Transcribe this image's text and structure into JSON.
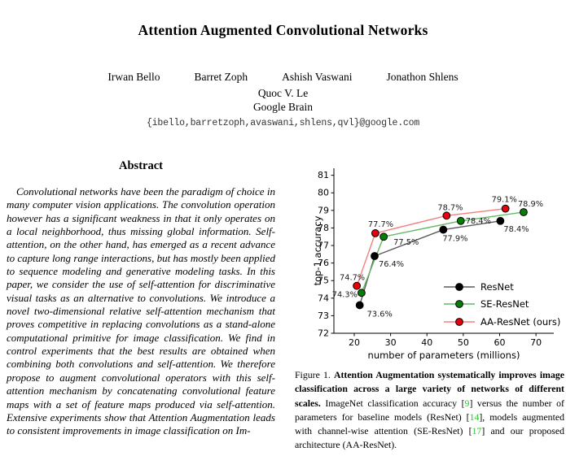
{
  "page": {
    "title": "Attention Augmented Convolutional Networks",
    "authors": [
      "Irwan Bello",
      "Barret Zoph",
      "Ashish Vaswani",
      "Jonathon Shlens"
    ],
    "authors_line2": "Quoc V. Le",
    "affiliation": "Google Brain",
    "email": "{ibello,barretzoph,avaswani,shlens,qvl}@google.com"
  },
  "abstract": {
    "heading": "Abstract",
    "text": "Convolutional networks have been the paradigm of choice in many computer vision applications. The convolution operation however has a significant weakness in that it only operates on a local neighborhood, thus missing global information. Self-attention, on the other hand, has emerged as a recent advance to capture long range interactions, but has mostly been applied to sequence modeling and generative modeling tasks. In this paper, we consider the use of self-attention for discriminative visual tasks as an alternative to convolutions. We introduce a novel two-dimensional relative self-attention mechanism that proves competitive in replacing convolutions as a stand-alone computational primitive for image classification. We find in control experiments that the best results are obtained when combining both convolutions and self-attention. We therefore propose to augment convolutional operators with this self-attention mechanism by concatenating convolutional feature maps with a set of feature maps produced via self-attention. Extensive experiments show that Attention Augmentation leads to consistent improvements in image classification on Im-"
  },
  "caption": {
    "segments": [
      {
        "text": "Figure 1. ",
        "style": "normal"
      },
      {
        "text": "Attention Augmentation systematically improves image classification across a large variety of networks of different scales.",
        "style": "bold"
      },
      {
        "text": " ImageNet classification accuracy [",
        "style": "normal"
      },
      {
        "text": "9",
        "style": "cite"
      },
      {
        "text": "] versus the number of parameters for baseline models (ResNet) [",
        "style": "normal"
      },
      {
        "text": "14",
        "style": "cite"
      },
      {
        "text": "], models augmented with channel-wise attention (SE-ResNet) [",
        "style": "normal"
      },
      {
        "text": "17",
        "style": "cite"
      },
      {
        "text": "] and our proposed architecture (AA-ResNet).",
        "style": "normal"
      }
    ]
  },
  "chart_data": {
    "type": "line",
    "xlabel": "number of parameters (millions)",
    "ylabel": "top-1 accuracy",
    "xlim": [
      14.4,
      74.9
    ],
    "ylim": [
      72,
      81.4
    ],
    "xticks": [
      20,
      30,
      40,
      50,
      60,
      70
    ],
    "yticks": [
      72,
      73,
      74,
      75,
      76,
      77,
      78,
      79,
      80,
      81
    ],
    "grid": false,
    "legend_position": "lower-right-inside",
    "series": [
      {
        "name": "ResNet",
        "marker_color": "#000000",
        "line_color": "#5a5a5a",
        "points": [
          {
            "x": 21.5,
            "y": 73.6,
            "label": "73.6%",
            "label_offset": [
              9,
              14
            ],
            "label_anchor": "start"
          },
          {
            "x": 25.6,
            "y": 76.4,
            "label": "76.4%",
            "label_offset": [
              5,
              13
            ],
            "label_anchor": "start"
          },
          {
            "x": 44.5,
            "y": 77.9,
            "label": "77.9%",
            "label_offset": [
              -1,
              14
            ],
            "label_anchor": "start"
          },
          {
            "x": 60.2,
            "y": 78.4,
            "label": "78.4%",
            "label_offset": [
              4,
              13
            ],
            "label_anchor": "start"
          }
        ]
      },
      {
        "name": "SE-ResNet",
        "marker_color": "#077d07",
        "line_color": "#63b863",
        "points": [
          {
            "x": 22.0,
            "y": 74.3,
            "label": "74.3%",
            "label_offset": [
              -5,
              5
            ],
            "label_anchor": "end"
          },
          {
            "x": 28.1,
            "y": 77.5,
            "label": "77.5%",
            "label_offset": [
              12,
              10
            ],
            "label_anchor": "start"
          },
          {
            "x": 49.3,
            "y": 78.4,
            "label": "78.4%",
            "label_offset": [
              6,
              3
            ],
            "label_anchor": "start"
          },
          {
            "x": 66.6,
            "y": 78.9,
            "label": "78.9%",
            "label_offset": [
              -7,
              -7
            ],
            "label_anchor": "start"
          }
        ]
      },
      {
        "name": "AA-ResNet (ours)",
        "marker_color": "#e8000d",
        "line_color": "#f57e7e",
        "points": [
          {
            "x": 20.7,
            "y": 74.7,
            "label": "74.7%",
            "label_offset": [
              10,
              -7
            ],
            "label_anchor": "end"
          },
          {
            "x": 25.8,
            "y": 77.7,
            "label": "77.7%",
            "label_offset": [
              -9,
              -8
            ],
            "label_anchor": "start"
          },
          {
            "x": 45.4,
            "y": 78.7,
            "label": "78.7%",
            "label_offset": [
              -11,
              -7
            ],
            "label_anchor": "start"
          },
          {
            "x": 61.6,
            "y": 79.1,
            "label": "79.1%",
            "label_offset": [
              -17,
              -8
            ],
            "label_anchor": "start"
          }
        ]
      }
    ]
  }
}
